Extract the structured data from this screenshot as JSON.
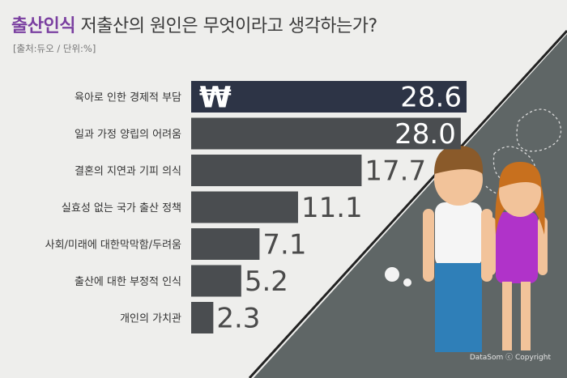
{
  "title_highlight": "출산인식",
  "title_rest": "저출산의 원인은 무엇이라고 생각하는가?",
  "source": "[출처:듀오 / 단위:%]",
  "credit": "DataSom ⓒ Copyright",
  "icon_symbol": "₩",
  "chart_data": {
    "type": "bar",
    "orientation": "horizontal",
    "title": "저출산의 원인은 무엇이라고 생각하는가?",
    "unit": "%",
    "categories": [
      "육아로 인한 경제적 부담",
      "일과 가정 양립의 어려움",
      "결혼의 지연과 기피 의식",
      "실효성 없는 국가 출산 정책",
      "사회/미래에 대한막막함/두려움",
      "출산에 대한 부정적 인식",
      "개인의 가치관"
    ],
    "values": [
      28.6,
      28.0,
      17.7,
      11.1,
      7.1,
      5.2,
      2.3
    ],
    "value_labels": [
      "28.6",
      "28.0",
      "17.7",
      "11.1",
      "7.1",
      "5.2",
      "2.3"
    ],
    "colors": {
      "highlight_bar": "#2d3446",
      "bar": "#4a4d50",
      "value_on_dark": "#ffffff",
      "value_on_light": "#4a4a4a"
    }
  }
}
